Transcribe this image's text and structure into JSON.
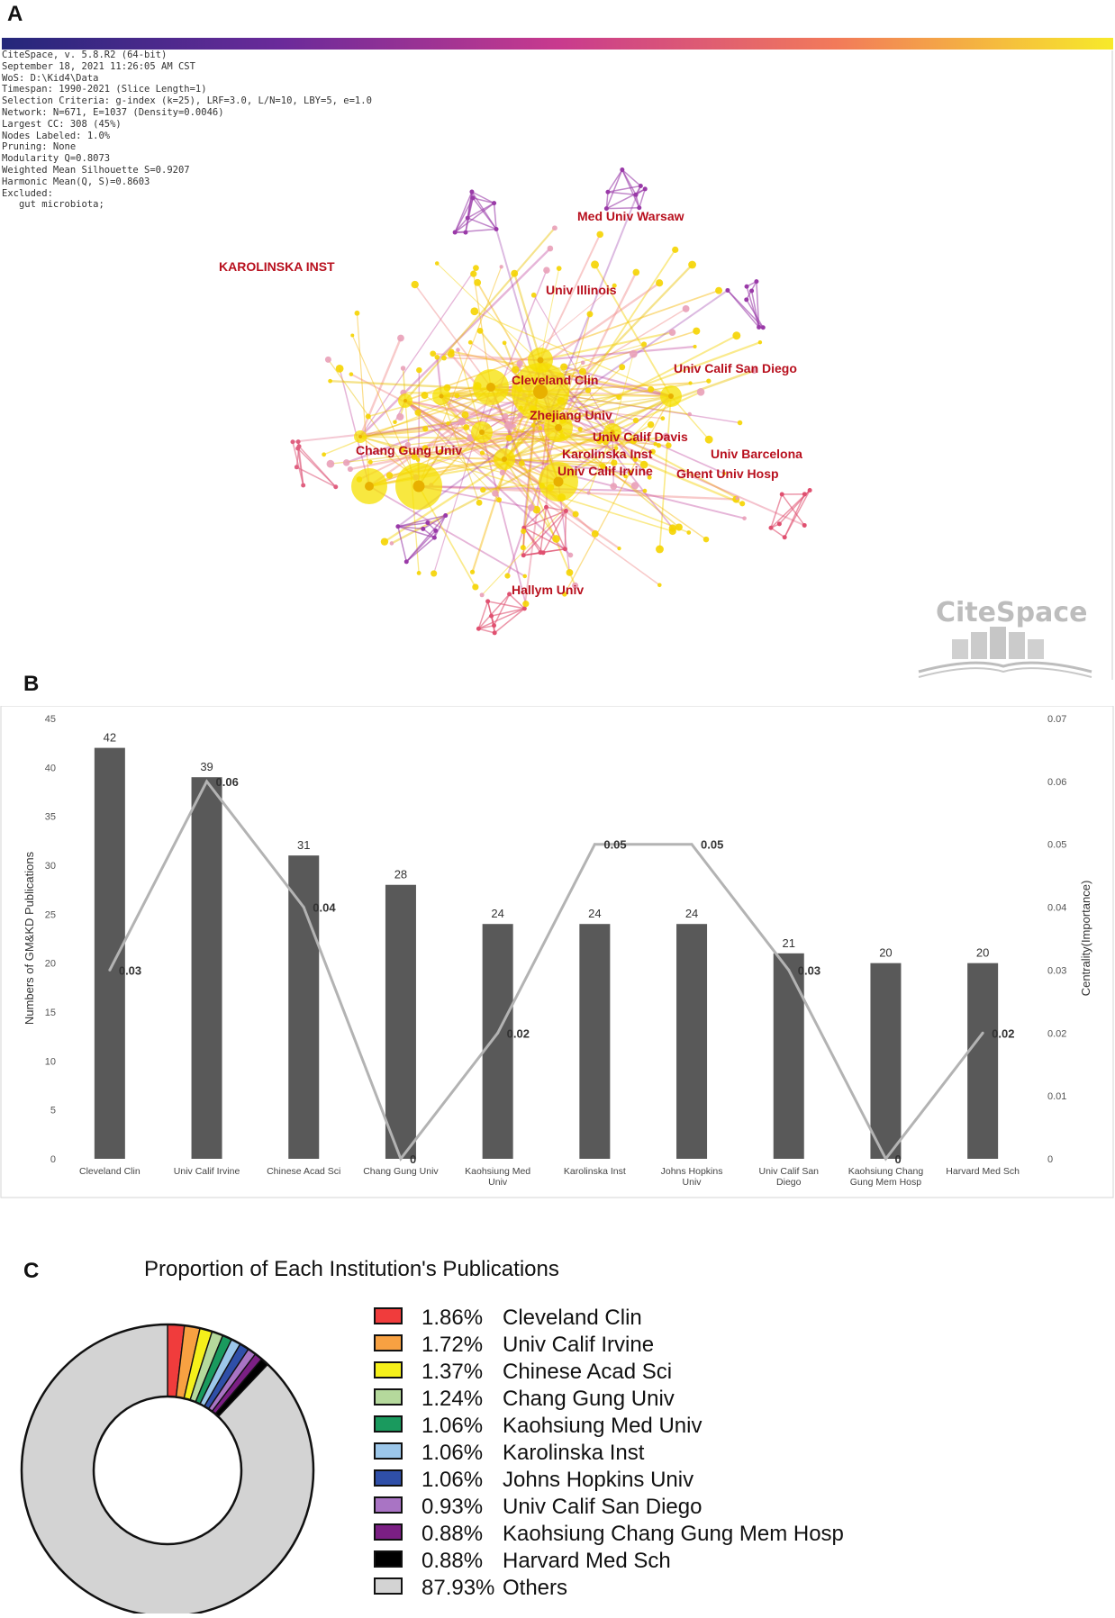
{
  "panels": {
    "a": "A",
    "b": "B",
    "c": "C"
  },
  "panel_a": {
    "meta_lines": [
      "CiteSpace, v. 5.8.R2 (64-bit)",
      "September 18, 2021 11:26:05 AM CST",
      "WoS: D:\\Kid4\\Data",
      "Timespan: 1990-2021 (Slice Length=1)",
      "Selection Criteria: g-index (k=25), LRF=3.0, L/N=10, LBY=5, e=1.0",
      "Network: N=671, E=1037 (Density=0.0046)",
      "Largest CC: 308 (45%)",
      "Nodes Labeled: 1.0%",
      "Pruning: None",
      "Modularity Q=0.8073",
      "Weighted Mean Silhouette S=0.9207",
      "Harmonic Mean(Q, S)=0.8603",
      "Excluded:",
      "   gut microbiota;"
    ],
    "labels": {
      "karolinska_upper": "KAROLINSKA INST",
      "med_univ_warsaw": "Med Univ Warsaw",
      "univ_illinois": "Univ Illinois",
      "univ_calif_san_diego": "Univ Calif San Diego",
      "cleveland_clin": "Cleveland Clin",
      "zhejiang_univ": "Zhejiang Univ",
      "univ_calif_davis": "Univ Calif Davis",
      "chang_gung_univ": "Chang Gung Univ",
      "karolinska_inst": "Karolinska Inst",
      "univ_barcelona": "Univ Barcelona",
      "univ_calif_irvine": "Univ Calif Irvine",
      "ghent_univ_hosp": "Ghent Univ Hosp",
      "hallym_univ": "Hallym Univ"
    },
    "logo_text": "CiteSpace"
  },
  "chart_data": [
    {
      "type": "bar",
      "secondary_type": "line",
      "categories": [
        "Cleveland Clin",
        "Univ Calif Irvine",
        "Chinese Acad Sci",
        "Chang Gung Univ",
        "Kaohsiung Med Univ",
        "Karolinska Inst",
        "Johns Hopkins Univ",
        "Univ Calif San Diego",
        "Kaohsiung Chang Gung Mem Hosp",
        "Harvard Med Sch"
      ],
      "category_lines": [
        [
          "Cleveland Clin"
        ],
        [
          "Univ Calif Irvine"
        ],
        [
          "Chinese Acad Sci"
        ],
        [
          "Chang Gung Univ"
        ],
        [
          "Kaohsiung Med",
          "Univ"
        ],
        [
          "Karolinska Inst"
        ],
        [
          "Johns Hopkins",
          "Univ"
        ],
        [
          "Univ Calif San",
          "Diego"
        ],
        [
          "Kaohsiung Chang",
          "Gung Mem Hosp"
        ],
        [
          "Harvard Med Sch"
        ]
      ],
      "series": [
        {
          "name": "Numbers of GM&KD Publications",
          "axis": "left",
          "values": [
            42,
            39,
            31,
            28,
            24,
            24,
            24,
            21,
            20,
            20
          ],
          "labels": [
            "42",
            "39",
            "31",
            "28",
            "24",
            "24",
            "24",
            "21",
            "20",
            "20"
          ]
        },
        {
          "name": "Centrality(Importance)",
          "axis": "right",
          "values": [
            0.03,
            0.06,
            0.04,
            0,
            0.02,
            0.05,
            0.05,
            0.03,
            0,
            0.02
          ],
          "labels": [
            "0.03",
            "0.06",
            "0.04",
            "0",
            "0.02",
            "0.05",
            "0.05",
            "0.03",
            "0",
            "0.02"
          ]
        }
      ],
      "ylabel": "Numbers of GM&KD Publications",
      "y2label": "Centrality(Importance)",
      "ylim": [
        0,
        45
      ],
      "y2lim": [
        0,
        0.07
      ],
      "yticks": [
        "0",
        "5",
        "10",
        "15",
        "20",
        "25",
        "30",
        "35",
        "40",
        "45"
      ],
      "y2ticks": [
        "0",
        "0.01",
        "0.02",
        "0.03",
        "0.04",
        "0.05",
        "0.06",
        "0.07"
      ],
      "bar_color": "#595959",
      "line_color": "#b3b3b3"
    },
    {
      "type": "pie",
      "donut": true,
      "title": "Proportion of Each Institution's Publications",
      "slices": [
        {
          "name": "Cleveland Clin",
          "value": 1.86,
          "label": "1.86%",
          "color": "#f03c3c"
        },
        {
          "name": "Univ Calif Irvine",
          "value": 1.72,
          "label": "1.72%",
          "color": "#f7a142"
        },
        {
          "name": "Chinese Acad Sci",
          "value": 1.37,
          "label": "1.37%",
          "color": "#f5f01a"
        },
        {
          "name": "Chang Gung Univ",
          "value": 1.24,
          "label": "1.24%",
          "color": "#b5d99c"
        },
        {
          "name": "Kaohsiung Med Univ",
          "value": 1.06,
          "label": "1.06%",
          "color": "#1a9a5e"
        },
        {
          "name": "Karolinska Inst",
          "value": 1.06,
          "label": "1.06%",
          "color": "#9cc7ea"
        },
        {
          "name": "Johns Hopkins Univ",
          "value": 1.06,
          "label": "1.06%",
          "color": "#2f4fa8"
        },
        {
          "name": "Univ Calif San Diego",
          "value": 0.93,
          "label": "0.93%",
          "color": "#a974c4"
        },
        {
          "name": "Kaohsiung Chang Gung Mem Hosp",
          "value": 0.88,
          "label": "0.88%",
          "color": "#7b1f84"
        },
        {
          "name": "Harvard Med Sch",
          "value": 0.88,
          "label": "0.88%",
          "color": "#000000"
        },
        {
          "name": "Others",
          "value": 87.93,
          "label": "87.93%",
          "color": "#d3d3d3"
        }
      ]
    }
  ]
}
